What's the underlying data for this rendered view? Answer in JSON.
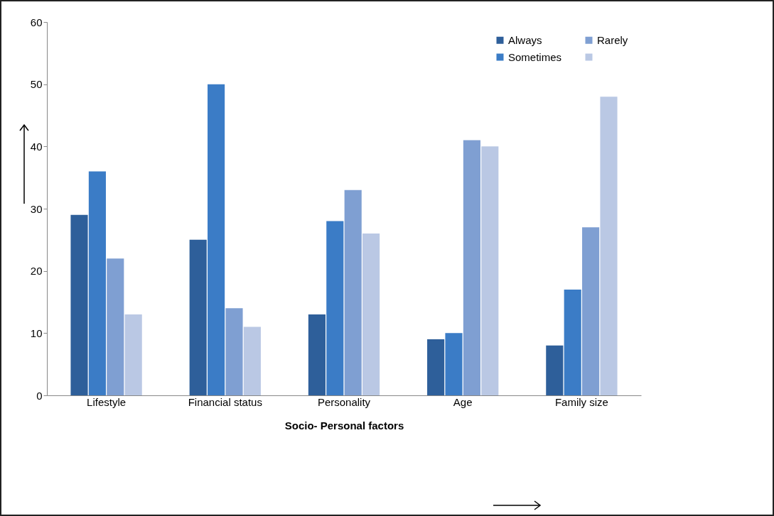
{
  "chart_data": {
    "type": "bar",
    "xlabel": "Socio- Personal factors",
    "categories": [
      "Lifestyle",
      "Financial status",
      "Personality",
      "Age",
      "Family size"
    ],
    "series": [
      {
        "name": "Always",
        "color": "#2e5f9a",
        "values": [
          29,
          25,
          13,
          9,
          8
        ]
      },
      {
        "name": "Sometimes",
        "color": "#3b7cc6",
        "values": [
          36,
          50,
          28,
          10,
          17
        ]
      },
      {
        "name": "Rarely",
        "color": "#7f9fd2",
        "values": [
          22,
          14,
          33,
          41,
          27
        ]
      },
      {
        "color": "#bac8e4",
        "values": [
          13,
          11,
          26,
          40,
          48
        ]
      }
    ],
    "ylim": [
      0,
      60
    ],
    "yticks": [
      0,
      10,
      20,
      30,
      40,
      50,
      60
    ],
    "grid": false,
    "legend": "top right"
  }
}
